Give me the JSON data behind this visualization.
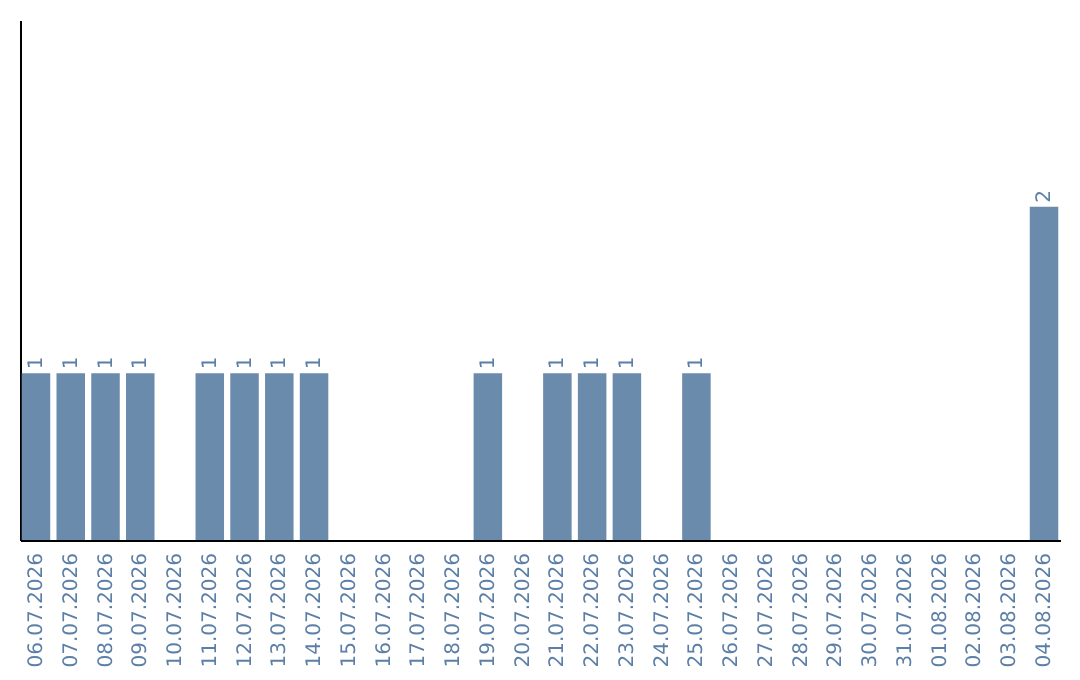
{
  "chart_data": {
    "type": "bar",
    "categories": [
      "06.07.2026",
      "07.07.2026",
      "08.07.2026",
      "09.07.2026",
      "10.07.2026",
      "11.07.2026",
      "12.07.2026",
      "13.07.2026",
      "14.07.2026",
      "15.07.2026",
      "16.07.2026",
      "17.07.2026",
      "18.07.2026",
      "19.07.2026",
      "20.07.2026",
      "21.07.2026",
      "22.07.2026",
      "23.07.2026",
      "24.07.2026",
      "25.07.2026",
      "26.07.2026",
      "27.07.2026",
      "28.07.2026",
      "29.07.2026",
      "30.07.2026",
      "31.07.2026",
      "01.08.2026",
      "02.08.2026",
      "03.08.2026",
      "04.08.2026"
    ],
    "values": [
      1,
      1,
      1,
      1,
      0,
      1,
      1,
      1,
      1,
      0,
      0,
      0,
      0,
      1,
      0,
      1,
      1,
      1,
      0,
      1,
      0,
      0,
      0,
      0,
      0,
      0,
      0,
      0,
      0,
      2
    ],
    "value_labels": [
      "1",
      "1",
      "1",
      "1",
      null,
      "1",
      "1",
      "1",
      "1",
      null,
      null,
      null,
      null,
      "1",
      null,
      "1",
      "1",
      "1",
      null,
      "1",
      null,
      null,
      null,
      null,
      null,
      null,
      null,
      null,
      null,
      "2"
    ],
    "color": "#6a8bab",
    "grid": false
  }
}
